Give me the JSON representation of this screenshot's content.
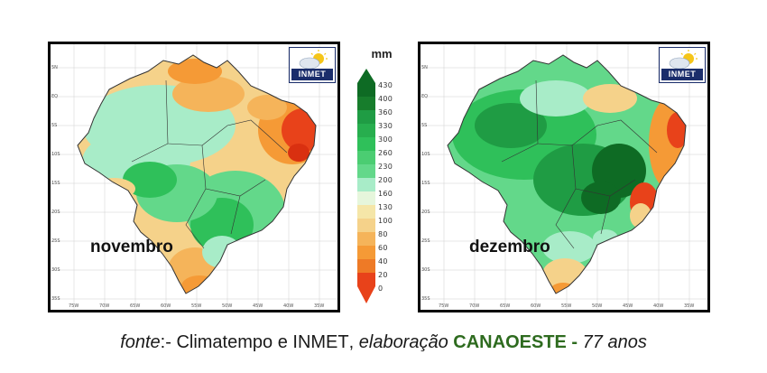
{
  "legend": {
    "unit": "mm",
    "ticks": [
      "430",
      "400",
      "360",
      "330",
      "300",
      "260",
      "230",
      "200",
      "160",
      "130",
      "100",
      "80",
      "60",
      "40",
      "20",
      "0"
    ]
  },
  "maps": [
    {
      "month": "novembro",
      "logo": "INMET"
    },
    {
      "month": "dezembro",
      "logo": "INMET"
    }
  ],
  "lat_labels": [
    "5N",
    "EQ",
    "5S",
    "10S",
    "15S",
    "20S",
    "25S",
    "30S",
    "35S"
  ],
  "lon_labels": [
    "75W",
    "70W",
    "65W",
    "60W",
    "55W",
    "50W",
    "45W",
    "40W",
    "35W"
  ],
  "caption": {
    "fonte": "fonte",
    "sep": ":- Climatempo e ",
    "inmet_I": "I",
    "inmet_rest": "NMET",
    "comma": ", ",
    "elab": "elaboração ",
    "can_C": "C",
    "can_rest": "ANAOESTE",
    "dash": " - ",
    "anos": "77 anos"
  },
  "colors": {
    "dry_red": "#e8421a",
    "dry_orange": "#f59a36",
    "tan": "#f5d28a",
    "mint": "#a8ecc8",
    "green": "#2fc05a",
    "dark_green": "#0e6b24",
    "logo_blue": "#1a2d6b"
  }
}
